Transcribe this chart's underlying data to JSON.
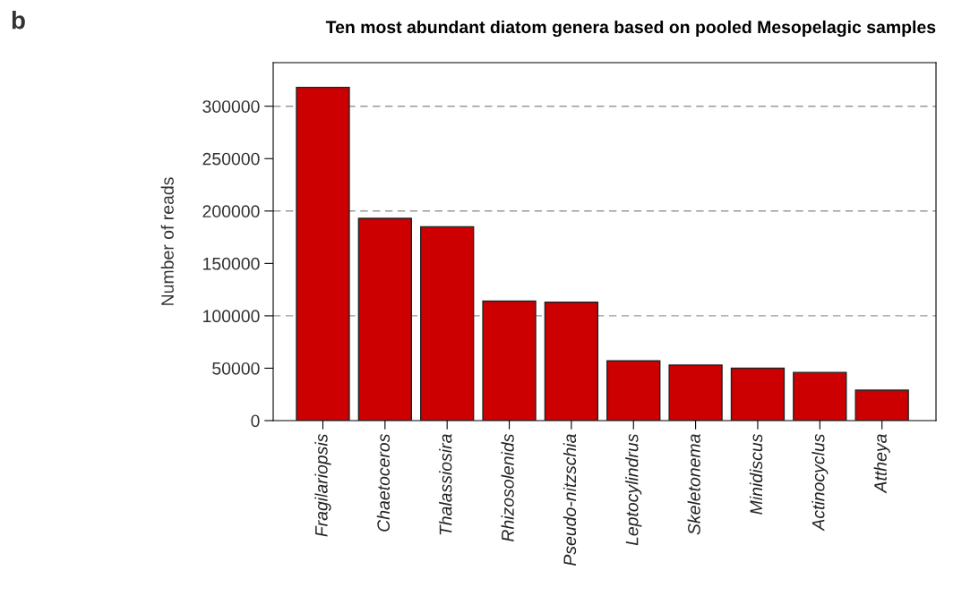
{
  "chart_data": {
    "type": "bar",
    "title": "Ten most abundant diatom genera based on pooled Mesopelagic samples",
    "ylabel": "Number of reads",
    "annotations": [
      "b"
    ],
    "categories": [
      "Fragilariopsis",
      "Chaetoceros",
      "Thalassiosira",
      "Rhizosolenids",
      "Pseudo-nitzschia",
      "Leptocylindrus",
      "Skeletonema",
      "Minidiscus",
      "Actinocyclus",
      "Attheya"
    ],
    "values": [
      318000,
      193000,
      185000,
      114000,
      113000,
      57000,
      53000,
      50000,
      46000,
      29000
    ],
    "color": "#cc0000",
    "ylim": [
      0,
      341600
    ],
    "yticks": [
      0,
      50000,
      100000,
      150000,
      200000,
      250000,
      300000
    ],
    "ref_lines": [
      {
        "axis": "y",
        "value": 100000,
        "color": "#999999",
        "line_style": "dashed"
      },
      {
        "axis": "y",
        "value": 200000,
        "color": "#999999",
        "line_style": "dashed"
      },
      {
        "axis": "y",
        "value": 300000,
        "color": "#999999",
        "line_style": "dashed"
      }
    ],
    "grid": false
  }
}
